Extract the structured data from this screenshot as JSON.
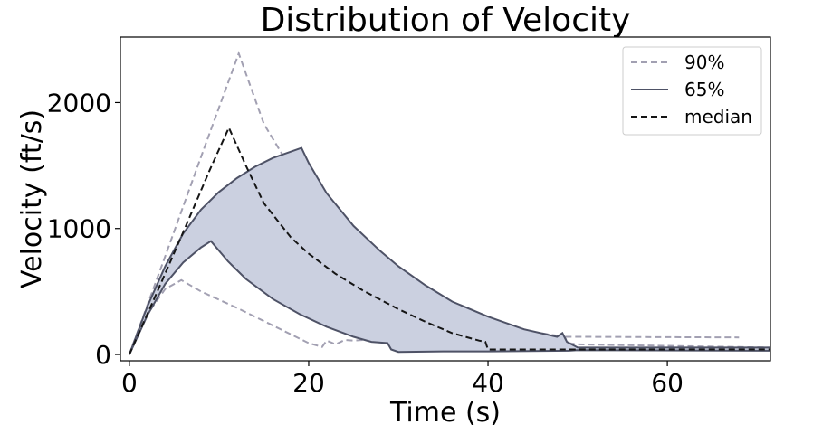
{
  "chart_data": {
    "type": "area",
    "title": "Distribution of Velocity",
    "xlabel": "Time (s)",
    "ylabel": "Velocity (ft/s)",
    "xlim": [
      -1,
      71.5
    ],
    "ylim": [
      -50,
      2520
    ],
    "xticks": [
      0,
      20,
      40,
      60
    ],
    "yticks": [
      0,
      1000,
      2000
    ],
    "legend_position": "top-right",
    "colors": {
      "band_fill": "#cbd0e0",
      "band_edge": "#4e5266",
      "p90": "#a2a0b2",
      "median": "#151515"
    },
    "legend": [
      {
        "label": "90%",
        "style": "dashed",
        "color": "#a2a0b2"
      },
      {
        "label": "65%",
        "style": "solid",
        "color": "#4e5266"
      },
      {
        "label": "median",
        "style": "dashed",
        "color": "#151515"
      }
    ],
    "series": [
      {
        "name": "90%",
        "kind": "dashed-pair",
        "upper": [
          [
            0,
            0
          ],
          [
            4,
            780
          ],
          [
            8,
            1570
          ],
          [
            12.2,
            2390
          ],
          [
            15,
            1830
          ],
          [
            20,
            1240
          ],
          [
            25,
            880
          ],
          [
            30,
            630
          ],
          [
            35,
            430
          ],
          [
            40,
            280
          ],
          [
            45,
            180
          ],
          [
            48.5,
            140
          ],
          [
            49,
            90
          ],
          [
            50,
            80
          ],
          [
            71.5,
            55
          ]
        ],
        "lower": [
          [
            0,
            0
          ],
          [
            2,
            320
          ],
          [
            4,
            520
          ],
          [
            5.8,
            590
          ],
          [
            8,
            500
          ],
          [
            12,
            370
          ],
          [
            16,
            230
          ],
          [
            20,
            90
          ],
          [
            21.5,
            60
          ],
          [
            22,
            110
          ],
          [
            23,
            80
          ],
          [
            24,
            115
          ],
          [
            25,
            110
          ],
          [
            30,
            135
          ],
          [
            35,
            145
          ],
          [
            45,
            142
          ],
          [
            68,
            135
          ]
        ]
      },
      {
        "name": "65%",
        "kind": "band",
        "upper": [
          [
            0,
            0
          ],
          [
            2,
            380
          ],
          [
            4,
            700
          ],
          [
            6,
            960
          ],
          [
            8,
            1150
          ],
          [
            10,
            1290
          ],
          [
            12,
            1400
          ],
          [
            14,
            1490
          ],
          [
            16,
            1560
          ],
          [
            19.2,
            1640
          ],
          [
            20,
            1520
          ],
          [
            22,
            1280
          ],
          [
            25,
            1020
          ],
          [
            28,
            820
          ],
          [
            30,
            700
          ],
          [
            33,
            550
          ],
          [
            36,
            420
          ],
          [
            40,
            300
          ],
          [
            44,
            200
          ],
          [
            47.7,
            140
          ],
          [
            48.3,
            170
          ],
          [
            48.8,
            100
          ],
          [
            50,
            55
          ],
          [
            71.5,
            55
          ]
        ],
        "lower": [
          [
            0,
            0
          ],
          [
            2,
            310
          ],
          [
            4,
            560
          ],
          [
            6,
            730
          ],
          [
            8,
            850
          ],
          [
            9.1,
            900
          ],
          [
            11,
            740
          ],
          [
            13,
            600
          ],
          [
            16,
            440
          ],
          [
            19,
            320
          ],
          [
            22,
            220
          ],
          [
            25,
            140
          ],
          [
            27,
            100
          ],
          [
            28.8,
            90
          ],
          [
            29.2,
            40
          ],
          [
            30,
            20
          ],
          [
            35,
            25
          ],
          [
            40,
            25
          ],
          [
            49,
            30
          ],
          [
            50,
            35
          ],
          [
            71.5,
            30
          ]
        ]
      },
      {
        "name": "median",
        "kind": "dashed",
        "points": [
          [
            0,
            0
          ],
          [
            3,
            480
          ],
          [
            6,
            970
          ],
          [
            9,
            1470
          ],
          [
            11.1,
            1800
          ],
          [
            13,
            1500
          ],
          [
            15,
            1200
          ],
          [
            18,
            930
          ],
          [
            20,
            800
          ],
          [
            23,
            640
          ],
          [
            26,
            510
          ],
          [
            30,
            360
          ],
          [
            33,
            260
          ],
          [
            36,
            170
          ],
          [
            39,
            110
          ],
          [
            39.7,
            100
          ],
          [
            40,
            40
          ],
          [
            45,
            40
          ],
          [
            50,
            40
          ],
          [
            71.5,
            40
          ]
        ]
      }
    ]
  }
}
